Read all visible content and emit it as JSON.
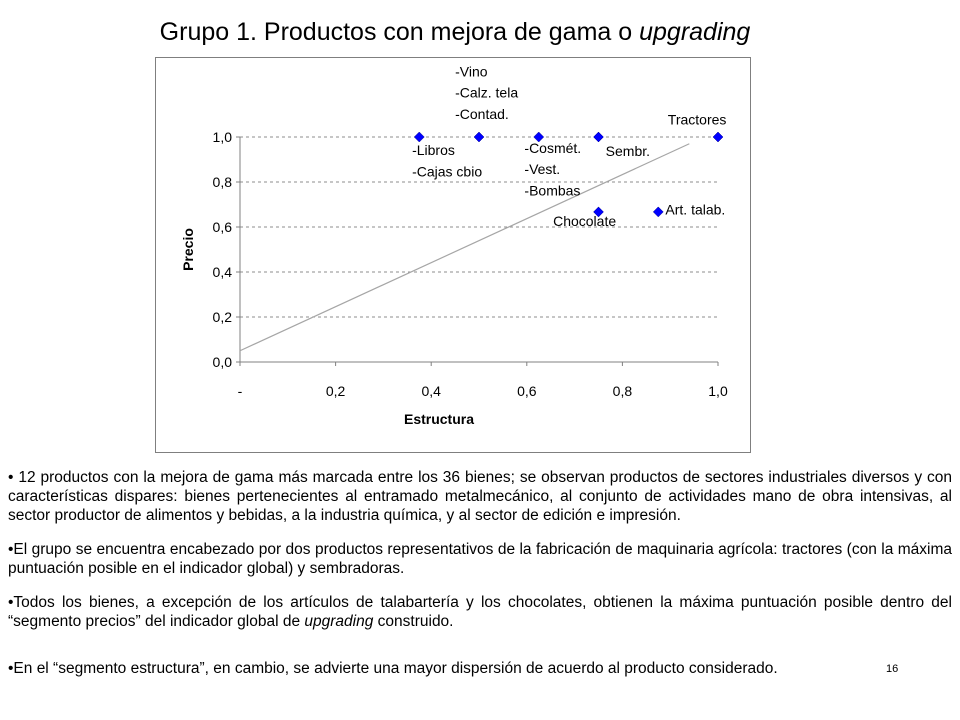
{
  "title": {
    "main": "Grupo 1. Productos con mejora de gama o ",
    "emphasis": "upgrading"
  },
  "chart_data": {
    "type": "scatter",
    "xlabel": "Estructura",
    "ylabel": "Precio",
    "xlim": [
      0,
      1
    ],
    "ylim": [
      0,
      1
    ],
    "x_tick_labels": [
      "-",
      "0,2",
      "0,4",
      "0,6",
      "0,8",
      "1,0"
    ],
    "x_tick_values": [
      0,
      0.2,
      0.4,
      0.6,
      0.8,
      1.0
    ],
    "y_tick_labels": [
      "0,0",
      "0,2",
      "0,4",
      "0,6",
      "0,8",
      "1,0"
    ],
    "y_tick_values": [
      0,
      0.2,
      0.4,
      0.6,
      0.8,
      1.0
    ],
    "grid": "horizontal dashed",
    "marker_color": "#0000ff",
    "trend_line_color": "#a6a6a6",
    "trend_line": {
      "x": [
        0,
        0.94
      ],
      "y": [
        0.05,
        0.97
      ]
    },
    "points": [
      {
        "x": 0.375,
        "y": 1.0
      },
      {
        "x": 0.5,
        "y": 1.0
      },
      {
        "x": 0.625,
        "y": 1.0
      },
      {
        "x": 0.75,
        "y": 1.0
      },
      {
        "x": 1.0,
        "y": 1.0
      },
      {
        "x": 0.75,
        "y": 0.667
      },
      {
        "x": 0.875,
        "y": 0.667
      }
    ],
    "annotations": [
      {
        "text": "-Vino",
        "x": 0.45,
        "y": 1.27
      },
      {
        "text": "-Calz. tela",
        "x": 0.45,
        "y": 1.175
      },
      {
        "text": "-Contad.",
        "x": 0.45,
        "y": 1.08
      },
      {
        "text": "-Libros",
        "x": 0.36,
        "y": 0.92
      },
      {
        "text": "-Cajas cbio",
        "x": 0.36,
        "y": 0.825
      },
      {
        "text": "-Cosmét.",
        "x": 0.595,
        "y": 0.93
      },
      {
        "text": "-Vest.",
        "x": 0.595,
        "y": 0.835
      },
      {
        "text": "-Bombas",
        "x": 0.595,
        "y": 0.74
      },
      {
        "text": "Sembr.",
        "x": 0.765,
        "y": 0.915
      },
      {
        "text": "Tractores",
        "x": 0.895,
        "y": 1.055
      },
      {
        "text": "Chocolate",
        "x": 0.655,
        "y": 0.605
      },
      {
        "text": "Art. talab.",
        "x": 0.89,
        "y": 0.655
      }
    ]
  },
  "bullets": [
    "• 12 productos con la mejora de gama más marcada entre los 36 bienes; se observan productos de sectores industriales diversos y con características dispares:  bienes pertenecientes al entramado metalmecánico, al conjunto de actividades mano de obra intensivas, al sector productor de alimentos y bebidas, a la industria química, y al sector de edición e impresión.",
    "•El grupo se encuentra encabezado por dos productos representativos de la fabricación de maquinaria agrícola: tractores (con la máxima puntuación posible en el indicador global) y sembradoras."
  ],
  "bullet3": {
    "before": "•Todos los bienes, a excepción de los artículos de talabartería y los chocolates, obtienen la máxima puntuación posible dentro del “segmento precios” del indicador global de ",
    "emphasis": "upgrading",
    "after": " construido."
  },
  "bullet4": "•En el “segmento estructura”, en cambio, se advierte una mayor dispersión de acuerdo al producto considerado.",
  "page_number": "16"
}
